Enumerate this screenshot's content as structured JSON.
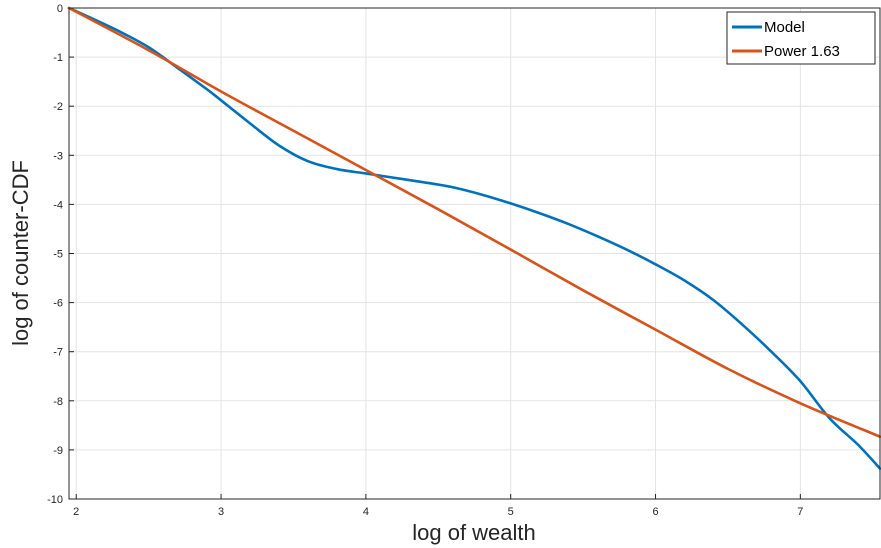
{
  "chart_data": {
    "type": "line",
    "title": "",
    "xlabel": "log of wealth",
    "ylabel": "log of counter-CDF",
    "xlim": [
      1.95,
      7.55
    ],
    "ylim": [
      -10,
      0
    ],
    "xticks": [
      2,
      3,
      4,
      5,
      6,
      7
    ],
    "yticks": [
      0,
      -1,
      -2,
      -3,
      -4,
      -5,
      -6,
      -7,
      -8,
      -9,
      -10
    ],
    "grid": true,
    "legend": "top-right",
    "series": [
      {
        "name": "Model",
        "color": "#0072BD",
        "x": [
          1.95,
          2.1,
          2.3,
          2.5,
          2.7,
          2.9,
          3.0,
          3.2,
          3.4,
          3.6,
          3.8,
          4.0,
          4.2,
          4.4,
          4.6,
          4.8,
          5.0,
          5.2,
          5.4,
          5.6,
          5.8,
          6.0,
          6.2,
          6.4,
          6.6,
          6.8,
          7.0,
          7.2,
          7.4,
          7.55
        ],
        "y": [
          0.0,
          -0.2,
          -0.48,
          -0.8,
          -1.22,
          -1.65,
          -1.88,
          -2.35,
          -2.8,
          -3.12,
          -3.28,
          -3.37,
          -3.46,
          -3.55,
          -3.65,
          -3.8,
          -3.98,
          -4.18,
          -4.4,
          -4.65,
          -4.92,
          -5.22,
          -5.55,
          -5.95,
          -6.45,
          -7.0,
          -7.6,
          -8.35,
          -8.9,
          -9.38
        ]
      },
      {
        "name": "Power 1.63",
        "color": "#D95319",
        "x": [
          1.95,
          2.5,
          3.0,
          3.5,
          4.0,
          4.5,
          5.0,
          5.5,
          6.0,
          6.5,
          7.0,
          7.55
        ],
        "y": [
          0.0,
          -0.86,
          -1.7,
          -2.5,
          -3.3,
          -4.1,
          -4.92,
          -5.75,
          -6.55,
          -7.35,
          -8.05,
          -8.73
        ]
      }
    ]
  }
}
